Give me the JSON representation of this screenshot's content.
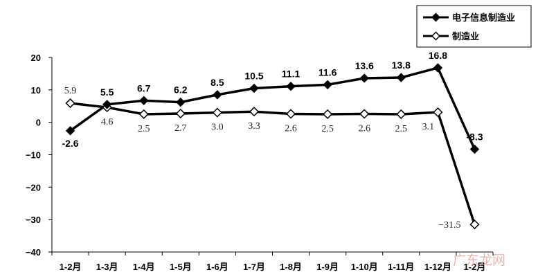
{
  "chart_data": {
    "type": "line",
    "categories": [
      "1-2月",
      "1-3月",
      "1-4月",
      "1-5月",
      "1-6月",
      "1-7月",
      "1-8月",
      "1-9月",
      "1-10月",
      "1-11月",
      "1-12月",
      "1-2月"
    ],
    "series": [
      {
        "name": "电子信息制造业",
        "values": [
          -2.6,
          5.5,
          6.7,
          6.2,
          8.5,
          10.5,
          11.1,
          11.6,
          13.6,
          13.8,
          16.8,
          -8.3
        ],
        "color": "#000000",
        "marker": "filled-diamond"
      },
      {
        "name": "制造业",
        "values": [
          5.9,
          4.6,
          2.5,
          2.7,
          3.0,
          3.3,
          2.6,
          2.5,
          2.6,
          2.5,
          3.1,
          -31.5
        ],
        "color": "#000000",
        "marker": "hollow-diamond"
      }
    ],
    "data_labels": [
      [
        "-2.6",
        "5.5",
        "6.7",
        "6.2",
        "8.5",
        "10.5",
        "11.1",
        "11.6",
        "13.6",
        "13.8",
        "16.8",
        "-8.3"
      ],
      [
        "5.9",
        "4.6",
        "2.5",
        "2.7",
        "3.0",
        "3.3",
        "2.6",
        "2.5",
        "2.6",
        "2.5",
        "3.1",
        "−31.5"
      ]
    ],
    "ylim": [
      -40,
      20
    ],
    "yticks": [
      20,
      10,
      0,
      -10,
      -20,
      -30,
      -40
    ],
    "ytick_labels": [
      "20",
      "10",
      "0",
      "−10",
      "−20",
      "−30",
      "−40"
    ],
    "title": "",
    "xlabel": "",
    "ylabel": "",
    "grid": false,
    "legend": "top-right"
  },
  "watermark": "广东龙网"
}
